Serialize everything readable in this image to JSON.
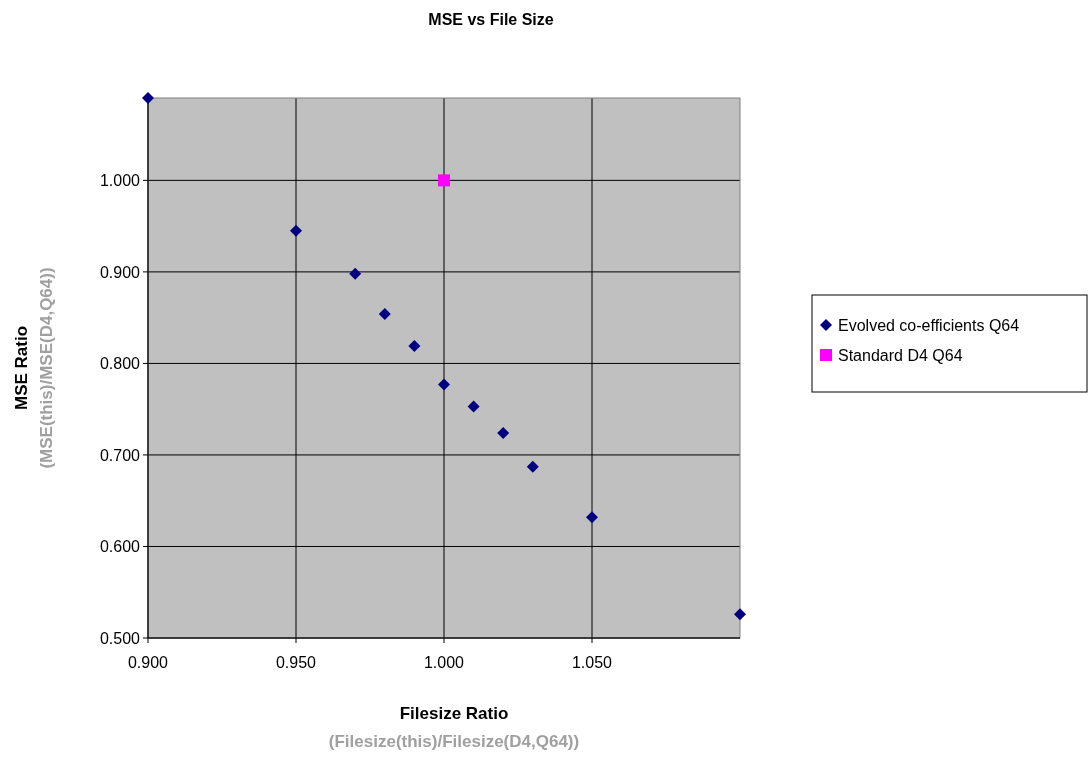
{
  "chart_data": {
    "type": "scatter",
    "title": "MSE vs File Size",
    "xlabel": "Filesize Ratio\n(Filesize(this)/Filesize(D4,Q64))",
    "ylabel": "MSE Ratio\n(MSE(this)/MSE(D4,Q64))",
    "xlim": [
      0.9,
      1.1
    ],
    "xticks": [
      {
        "value": 0.9,
        "label": "0.900"
      },
      {
        "value": 0.95,
        "label": "0.950"
      },
      {
        "value": 1.0,
        "label": "1.000"
      },
      {
        "value": 1.05,
        "label": "1.050"
      }
    ],
    "ylim": [
      0.5,
      1.09
    ],
    "yticks": [
      {
        "value": 0.5,
        "label": "0.500"
      },
      {
        "value": 0.6,
        "label": "0.600"
      },
      {
        "value": 0.7,
        "label": "0.700"
      },
      {
        "value": 0.8,
        "label": "0.800"
      },
      {
        "value": 0.9,
        "label": "0.900"
      },
      {
        "value": 1.0,
        "label": "1.000"
      }
    ],
    "grid": true,
    "legend": "right",
    "series": [
      {
        "name": "Evolved co-efficients Q64",
        "color": "#000080",
        "marker": "diamond",
        "x": [
          0.9,
          0.95,
          0.97,
          0.98,
          0.99,
          1.0,
          1.01,
          1.02,
          1.03,
          1.05,
          1.1
        ],
        "values": [
          1.09,
          0.945,
          0.898,
          0.854,
          0.819,
          0.777,
          0.753,
          0.724,
          0.687,
          0.632,
          0.526
        ]
      },
      {
        "name": "Standard D4 Q64",
        "color": "#ff00ff",
        "marker": "square",
        "x": [
          1.0
        ],
        "values": [
          1.0
        ]
      }
    ]
  }
}
